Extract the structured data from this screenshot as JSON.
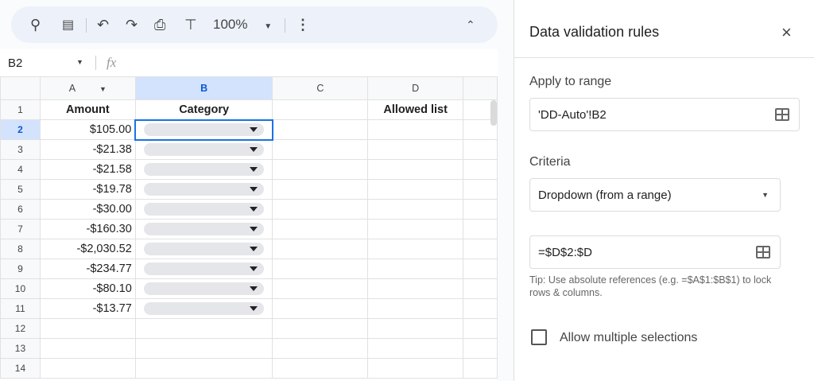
{
  "toolbar": {
    "zoom": "100%",
    "icons": [
      "search-icon",
      "menus-icon",
      "undo-icon",
      "redo-icon",
      "print-icon",
      "paint-format-icon",
      "more-vert-icon",
      "collapse-icon"
    ]
  },
  "formula_bar": {
    "cell_ref": "B2",
    "fx": "fx",
    "value": ""
  },
  "columns": [
    "A",
    "B",
    "C",
    "D"
  ],
  "rows": [
    {
      "n": "1",
      "a": "Amount",
      "b": "Category",
      "d": "Allowed list"
    },
    {
      "n": "2",
      "a": "$105.00"
    },
    {
      "n": "3",
      "a": "-$21.38"
    },
    {
      "n": "4",
      "a": "-$21.58"
    },
    {
      "n": "5",
      "a": "-$19.78"
    },
    {
      "n": "6",
      "a": "-$30.00"
    },
    {
      "n": "7",
      "a": "-$160.30"
    },
    {
      "n": "8",
      "a": "-$2,030.52"
    },
    {
      "n": "9",
      "a": "-$234.77"
    },
    {
      "n": "10",
      "a": "-$80.10"
    },
    {
      "n": "11",
      "a": "-$13.77"
    },
    {
      "n": "12"
    },
    {
      "n": "13"
    },
    {
      "n": "14"
    }
  ],
  "panel": {
    "title": "Data validation rules",
    "apply_label": "Apply to range",
    "apply_value": "'DD-Auto'!B2",
    "criteria_label": "Criteria",
    "criteria_value": "Dropdown (from a range)",
    "range_value": "=$D$2:$D",
    "tip": "Tip: Use absolute references (e.g. =$A$1:$B$1) to lock rows & columns.",
    "allow_multiple": "Allow multiple selections",
    "allow_multiple_checked": false
  }
}
